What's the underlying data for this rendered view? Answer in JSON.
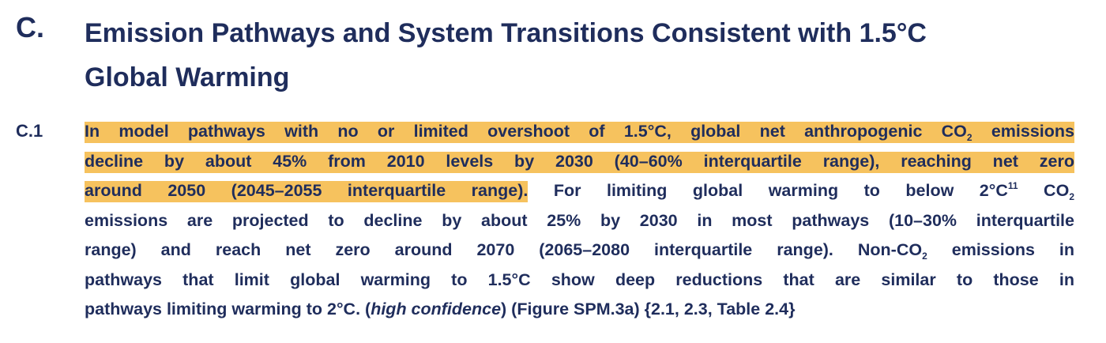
{
  "heading": {
    "label": "C.",
    "title_lines": [
      "Emission Pathways and System Transitions Consistent with 1.5°C",
      "Global Warming"
    ]
  },
  "statement": {
    "label": "C.1",
    "lines": [
      [
        "In model pathways with no or limited overshoot of 1.5°C, global net anthropogenic CO",
        "2",
        " emissions"
      ],
      [
        "decline by about 45% from 2010 levels by 2030 (40–60% interquartile range), reaching net zero"
      ],
      [
        "around 2050 (2045–2055 interquartile range).",
        " For limiting global warming to below 2°C",
        "11",
        " CO",
        "2"
      ],
      [
        "emissions are projected to decline by about 25% by 2030 in most pathways (10–30% interquartile"
      ],
      [
        "range) and reach net zero around 2070 (2065–2080 interquartile range). Non-CO",
        "2",
        " emissions in"
      ],
      [
        "pathways that limit global warming to 1.5°C show deep reductions that are similar to those in"
      ],
      [
        "pathways limiting warming to 2°C. (",
        "high confidence",
        ") (Figure SPM.3a) {2.1, 2.3, Table 2.4}"
      ]
    ]
  }
}
